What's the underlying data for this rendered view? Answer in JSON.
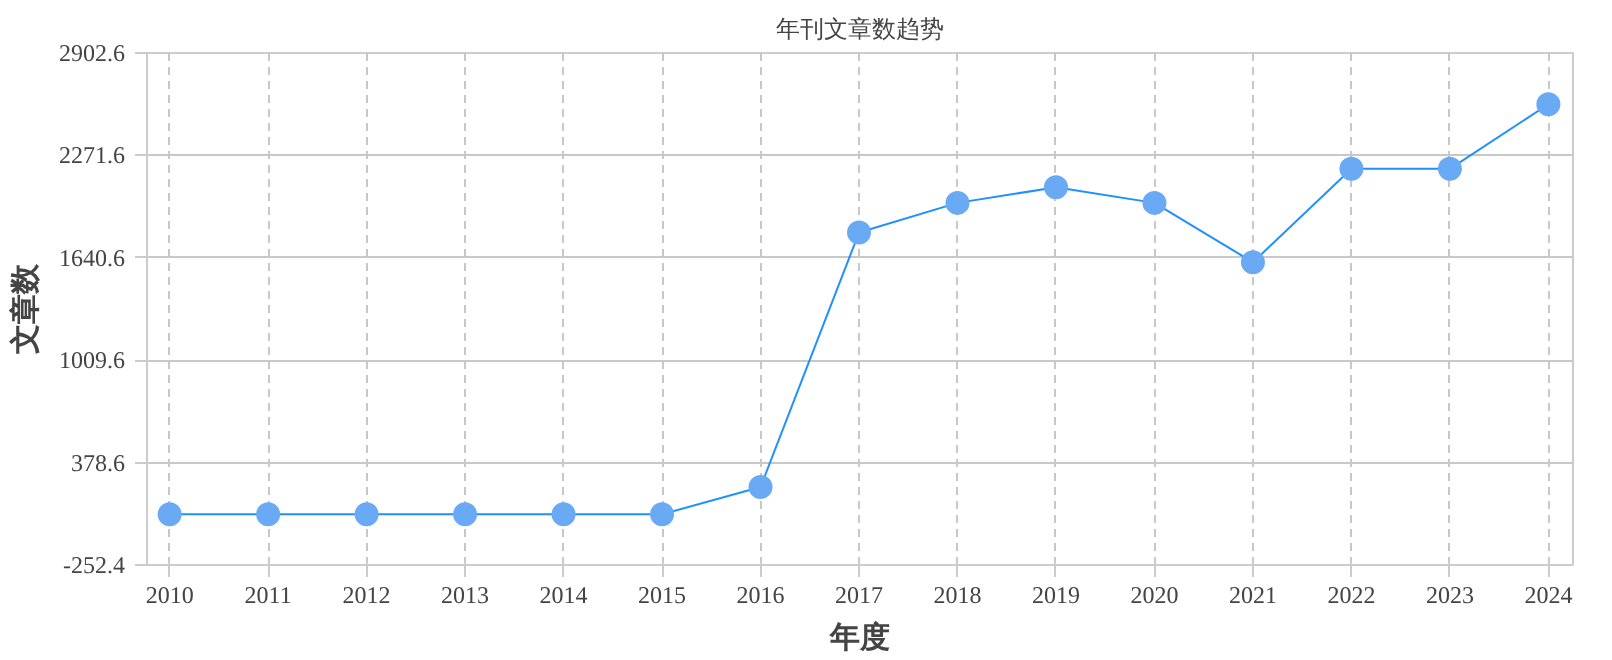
{
  "chart_data": {
    "type": "line",
    "title": "年刊文章数趋势",
    "xlabel": "年度",
    "ylabel": "文章数",
    "categories": [
      "2010",
      "2011",
      "2012",
      "2013",
      "2014",
      "2015",
      "2016",
      "2017",
      "2018",
      "2019",
      "2020",
      "2021",
      "2022",
      "2023",
      "2024"
    ],
    "series": [
      {
        "color": "#1e90ff",
        "values": [
          60,
          60,
          60,
          60,
          60,
          60,
          228,
          1796,
          1979,
          2075,
          1979,
          1613,
          2189,
          2189,
          2587
        ]
      }
    ],
    "ylim": [
      -252.4,
      2902.6
    ],
    "yticks": [
      -252.4,
      378.6,
      1009.6,
      1640.6,
      2271.6,
      2902.6
    ],
    "grid": true,
    "marker": "circle",
    "line_style": "solid"
  }
}
